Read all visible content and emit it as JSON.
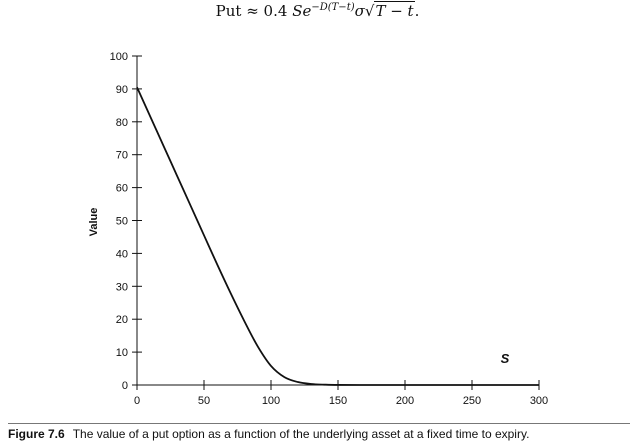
{
  "formula": {
    "lhs": "Put",
    "approx": "≈ 0.4",
    "base": "Se",
    "exponent": "−D(T−t)",
    "sigma": "σ",
    "sqrt_arg": "T − t",
    "end": "."
  },
  "caption": {
    "label": "Figure 7.6",
    "text": "The value of a put option as a function of the underlying asset at a fixed time to expiry."
  },
  "chart_data": {
    "type": "line",
    "title": "",
    "xlabel": "",
    "ylabel": "Value",
    "annotation": "S",
    "xlim": [
      0,
      300
    ],
    "ylim": [
      0,
      100
    ],
    "xticks": [
      0,
      50,
      100,
      150,
      200,
      250,
      300
    ],
    "yticks": [
      0,
      10,
      20,
      30,
      40,
      50,
      60,
      70,
      80,
      90,
      100
    ],
    "grid": false,
    "series": [
      {
        "name": "Put value",
        "x": [
          0,
          10,
          20,
          30,
          40,
          50,
          60,
          70,
          80,
          90,
          100,
          110,
          120,
          130,
          140,
          150,
          175,
          200,
          250,
          300
        ],
        "values": [
          90.5,
          81.5,
          72.5,
          63.5,
          54.5,
          45.5,
          36.5,
          27.8,
          19.5,
          11.8,
          5.8,
          2.4,
          0.9,
          0.3,
          0.1,
          0.02,
          0,
          0,
          0,
          0
        ]
      }
    ]
  }
}
